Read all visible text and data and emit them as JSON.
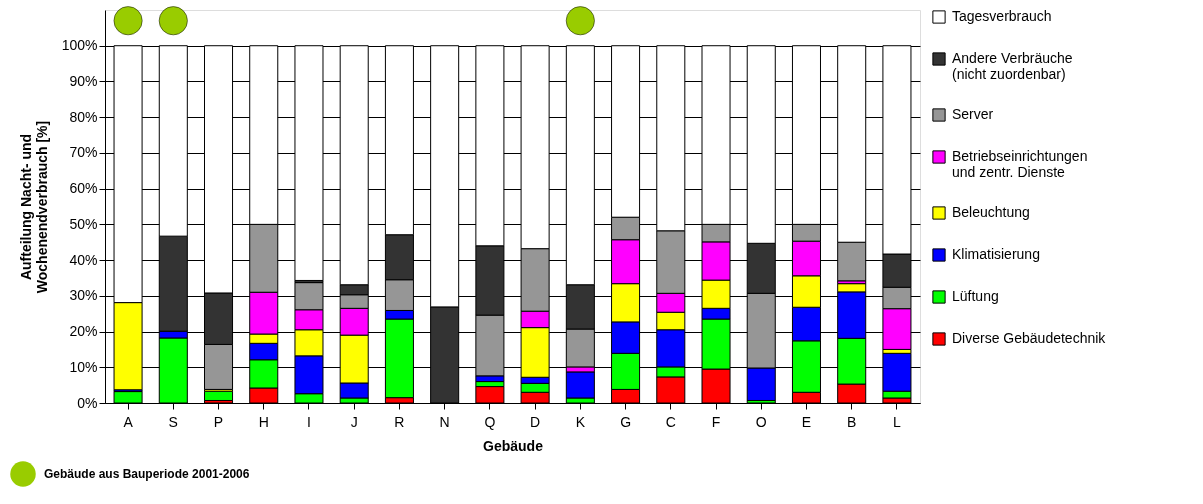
{
  "chart_data": {
    "type": "bar",
    "stacked": true,
    "xlabel": "Gebäude",
    "ylabel": "Aufteilung Nacht- und\nWochenendverbrauch [%]",
    "categories": [
      "A",
      "S",
      "P",
      "H",
      "I",
      "J",
      "R",
      "N",
      "Q",
      "D",
      "K",
      "G",
      "C",
      "F",
      "O",
      "E",
      "B",
      "L"
    ],
    "ylim": [
      0,
      110
    ],
    "yticks": [
      {
        "value": 0,
        "label": "0%"
      },
      {
        "value": 10,
        "label": "10%"
      },
      {
        "value": 20,
        "label": "20%"
      },
      {
        "value": 30,
        "label": "30%"
      },
      {
        "value": 40,
        "label": "40%"
      },
      {
        "value": 50,
        "label": "50%"
      },
      {
        "value": 60,
        "label": "60%"
      },
      {
        "value": 70,
        "label": "70%"
      },
      {
        "value": 80,
        "label": "80%"
      },
      {
        "value": 90,
        "label": "90%"
      },
      {
        "value": 100,
        "label": "100%"
      }
    ],
    "grid": "y",
    "legend": "right",
    "series": [
      {
        "name": "Diverse Gebäudetechnik",
        "color": "#ff0000",
        "values": [
          0,
          0,
          0.7,
          4.2,
          0,
          0,
          1.5,
          0,
          4.6,
          3.0,
          0,
          3.8,
          7.3,
          9.5,
          0,
          3.0,
          5.3,
          1.4
        ]
      },
      {
        "name": "Lüftung",
        "color": "#00ff00",
        "values": [
          3.2,
          18.2,
          2.6,
          7.9,
          2.6,
          1.4,
          22.0,
          0,
          1.4,
          2.5,
          1.4,
          10.1,
          2.8,
          14.0,
          0.7,
          14.4,
          12.8,
          1.9
        ]
      },
      {
        "name": "Klimatisierung",
        "color": "#0000ff",
        "values": [
          0.5,
          1.9,
          0,
          4.6,
          10.6,
          4.2,
          2.4,
          0,
          1.6,
          1.7,
          7.3,
          8.8,
          10.4,
          3.0,
          9.1,
          9.4,
          13.0,
          10.6
        ]
      },
      {
        "name": "Beleuchtung",
        "color": "#ffff00",
        "values": [
          24.4,
          0,
          0.5,
          2.6,
          7.3,
          13.4,
          0,
          0,
          0,
          13.9,
          0,
          10.7,
          4.9,
          7.9,
          0,
          8.8,
          2.3,
          1.1
        ]
      },
      {
        "name": "Betriebseinrichtungen\nund zentr. Dienste",
        "color": "#ff00ff",
        "values": [
          0,
          0,
          0,
          11.7,
          5.6,
          7.5,
          0,
          0,
          0,
          4.6,
          1.4,
          12.3,
          5.3,
          10.7,
          0,
          9.7,
          0.8,
          11.4
        ]
      },
      {
        "name": "Server",
        "color": "#969696",
        "values": [
          0,
          0,
          12.6,
          19.0,
          7.6,
          3.8,
          8.6,
          0,
          17.0,
          17.5,
          10.6,
          6.3,
          17.5,
          4.9,
          20.9,
          4.7,
          10.8,
          6.0
        ]
      },
      {
        "name": "Andere Verbräuche\n(nicht zuordenbar)",
        "color": "#333333",
        "values": [
          0,
          26.6,
          14.4,
          0,
          0.6,
          2.8,
          12.6,
          26.9,
          19.4,
          0,
          12.4,
          0,
          0,
          0,
          14.0,
          0,
          0,
          9.3
        ]
      },
      {
        "name": "Tagesverbrauch",
        "color": "#ffffff",
        "values": [
          71.9,
          53.3,
          69.2,
          50.0,
          65.7,
          66.9,
          52.9,
          73.1,
          56.0,
          56.8,
          66.9,
          48.0,
          51.8,
          50.0,
          55.3,
          50.0,
          55.0,
          58.3
        ]
      },
      {
        "name": "Gebäude aus Bauperiode 2001-2006",
        "type": "scatter",
        "marker": "circle",
        "color": "#99cc00",
        "x": [
          "A",
          "S",
          "K"
        ],
        "values": [
          107,
          107,
          107
        ]
      }
    ]
  }
}
